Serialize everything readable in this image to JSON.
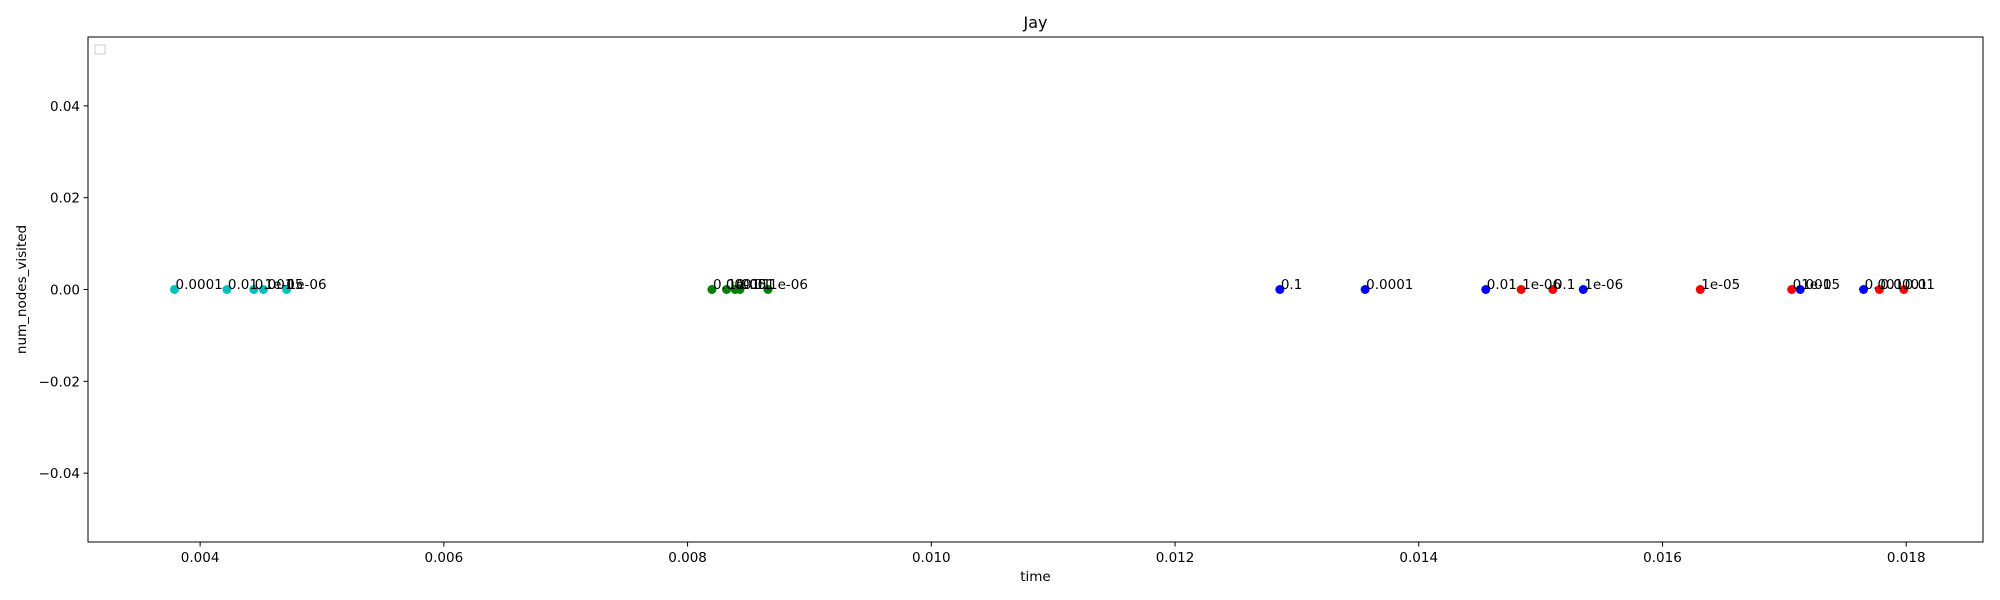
{
  "chart_data": {
    "type": "scatter",
    "title": "Jay",
    "xlabel": "time",
    "ylabel": "num_nodes_visited",
    "xlim": [
      0.00308,
      0.01863
    ],
    "ylim": [
      -0.055,
      0.055
    ],
    "xticks": [
      0.004,
      0.006,
      0.008,
      0.01,
      0.012,
      0.014,
      0.016,
      0.018
    ],
    "xtick_labels": [
      "0.004",
      "0.006",
      "0.008",
      "0.010",
      "0.012",
      "0.014",
      "0.016",
      "0.018"
    ],
    "yticks": [
      -0.04,
      -0.02,
      0.0,
      0.02,
      0.04
    ],
    "ytick_labels": [
      "−0.04",
      "−0.02",
      "0.00",
      "0.02",
      "0.04"
    ],
    "grid": false,
    "legend": {
      "placement": "upper-left",
      "entries": []
    },
    "series": [
      {
        "color": "#00bfbf",
        "points": [
          {
            "x": 0.00379,
            "y": 0,
            "label": "0.0001"
          },
          {
            "x": 0.00422,
            "y": 0,
            "label": "0.01"
          },
          {
            "x": 0.00444,
            "y": 0,
            "label": "0.001"
          },
          {
            "x": 0.00452,
            "y": 0,
            "label": "1e-05"
          },
          {
            "x": 0.00471,
            "y": 0,
            "label": "1e-06"
          }
        ]
      },
      {
        "color": "#008000",
        "points": [
          {
            "x": 0.0082,
            "y": 0,
            "label": "0.0001"
          },
          {
            "x": 0.00832,
            "y": 0,
            "label": "1e-05"
          },
          {
            "x": 0.00839,
            "y": 0,
            "label": "0.001"
          },
          {
            "x": 0.00843,
            "y": 0,
            "label": "0.01"
          },
          {
            "x": 0.00866,
            "y": 0,
            "label": "1e-06"
          }
        ]
      },
      {
        "color": "#0000ff",
        "points": [
          {
            "x": 0.01286,
            "y": 0,
            "label": "0.1"
          },
          {
            "x": 0.01356,
            "y": 0,
            "label": "0.0001"
          },
          {
            "x": 0.01455,
            "y": 0,
            "label": "0.01"
          },
          {
            "x": 0.01535,
            "y": 0,
            "label": "1e-06"
          },
          {
            "x": 0.01713,
            "y": 0,
            "label": "1e-05"
          },
          {
            "x": 0.01765,
            "y": 0,
            "label": "0.001"
          }
        ]
      },
      {
        "color": "#ff0000",
        "points": [
          {
            "x": 0.01484,
            "y": 0,
            "label": "1e-06"
          },
          {
            "x": 0.0151,
            "y": 0,
            "label": "0.1"
          },
          {
            "x": 0.01631,
            "y": 0,
            "label": "1e-05"
          },
          {
            "x": 0.01706,
            "y": 0,
            "label": "0.001"
          },
          {
            "x": 0.01778,
            "y": 0,
            "label": "0.0001"
          },
          {
            "x": 0.01798,
            "y": 0,
            "label": "0.01"
          }
        ]
      }
    ]
  }
}
